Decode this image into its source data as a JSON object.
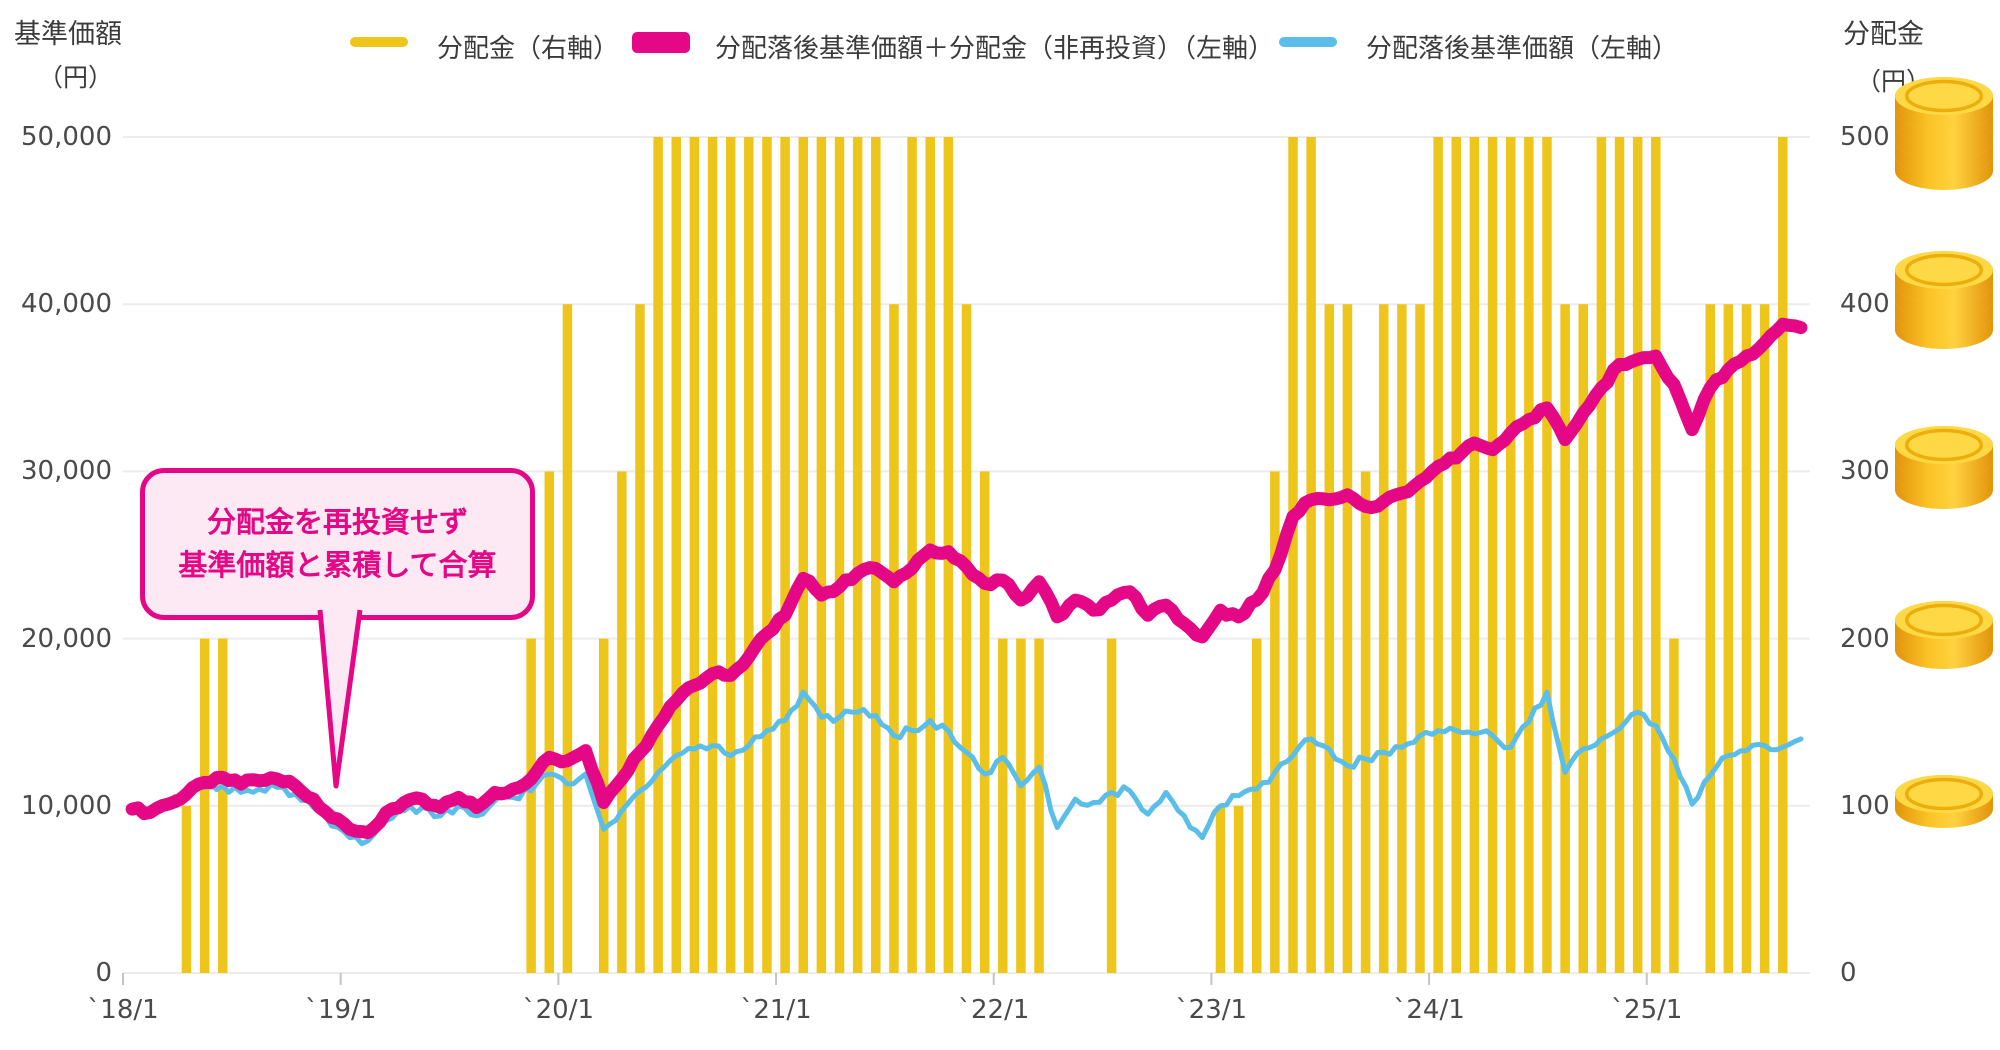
{
  "left_axis": {
    "title": "基準価額",
    "unit": "（円）",
    "ticks": [
      "0",
      "10,000",
      "20,000",
      "30,000",
      "40,000",
      "50,000"
    ]
  },
  "right_axis": {
    "title": "分配金",
    "unit": "（円）",
    "ticks": [
      "0",
      "100",
      "200",
      "300",
      "400",
      "500"
    ]
  },
  "legend": [
    {
      "label": "分配金（右軸）",
      "type": "bar",
      "color": "#EEC51B"
    },
    {
      "label": "分配落後基準価額＋分配金（非再投資）（左軸）",
      "type": "line-thick",
      "color": "#E40887"
    },
    {
      "label": "分配落後基準価額（左軸）",
      "type": "line",
      "color": "#5ABEE8"
    }
  ],
  "callout": {
    "line1": "分配金を再投資せず",
    "line2": "基準価額と累積して合算"
  },
  "colors": {
    "bar": "#EEC51B",
    "total_line": "#E40887",
    "nav_line": "#5ABEE8",
    "grid": "#ececec",
    "tick": "#c4c4c4",
    "text": "#3b3b3b",
    "callout_bg": "#FCE9F4",
    "callout_accent": "#E40887",
    "coin_side_dark": "#E1940B",
    "coin_side_mid": "#FBC426",
    "coin_side_light": "#FFD23F",
    "coin_top": "#FFD945",
    "coin_ring": "#EBAE0D"
  },
  "chart_data": {
    "type": "bar",
    "subtype": "combo-bar-and-lines",
    "months_start": "2018/1",
    "months_end": "2025/9",
    "x_labels": [
      "`18/1",
      "`19/1",
      "`20/1",
      "`21/1",
      "`22/1",
      "`23/1",
      "`24/1",
      "`25/1"
    ],
    "left_ylim": [
      0,
      50000
    ],
    "right_ylim": [
      0,
      500
    ],
    "grid": "horizontal-only",
    "legend_position": "top",
    "series": [
      {
        "name": "分配金（右軸）",
        "type": "bar",
        "axis": "right",
        "color": "#EEC51B",
        "values": [
          0,
          0,
          0,
          100,
          200,
          200,
          0,
          0,
          0,
          0,
          0,
          0,
          0,
          0,
          0,
          0,
          0,
          0,
          0,
          0,
          0,
          0,
          200,
          300,
          400,
          0,
          200,
          300,
          400,
          500,
          500,
          500,
          500,
          500,
          500,
          500,
          500,
          500,
          500,
          500,
          500,
          500,
          400,
          500,
          500,
          500,
          400,
          300,
          200,
          200,
          200,
          0,
          0,
          0,
          200,
          0,
          0,
          0,
          0,
          0,
          100,
          100,
          200,
          300,
          500,
          500,
          400,
          400,
          300,
          400,
          400,
          400,
          500,
          500,
          500,
          500,
          500,
          500,
          500,
          400,
          400,
          500,
          500,
          500,
          500,
          200,
          0,
          400,
          400,
          400,
          400,
          500,
          0
        ]
      },
      {
        "name": "分配落後基準価額＋分配金（非再投資）（左軸）",
        "type": "line",
        "axis": "left",
        "color": "#E40887",
        "stroke_width": 13,
        "values": [
          9800,
          9600,
          10100,
          10700,
          11400,
          11700,
          11300,
          11500,
          11600,
          11200,
          10400,
          9300,
          8600,
          8400,
          9600,
          10200,
          10400,
          9900,
          10500,
          9900,
          10800,
          11000,
          11600,
          12900,
          12700,
          13300,
          10200,
          11600,
          13200,
          14800,
          16300,
          17200,
          17900,
          17800,
          18900,
          20300,
          21400,
          23600,
          22600,
          23100,
          23900,
          24200,
          23400,
          24200,
          25300,
          25200,
          24300,
          23300,
          23500,
          22300,
          23400,
          21300,
          22300,
          21700,
          22300,
          22800,
          21400,
          22000,
          20900,
          20100,
          21700,
          21300,
          22300,
          24100,
          27300,
          28300,
          28300,
          28600,
          27900,
          28200,
          28700,
          29400,
          30300,
          30800,
          31700,
          31300,
          32300,
          33100,
          33800,
          31900,
          33500,
          35000,
          36400,
          36700,
          36900,
          35200,
          32500,
          35000,
          36100,
          36900,
          37700,
          38800,
          38600
        ]
      },
      {
        "name": "分配落後基準価額（左軸）",
        "type": "line",
        "axis": "left",
        "color": "#5ABEE8",
        "stroke_width": 5,
        "values": [
          9800,
          9600,
          10100,
          10600,
          11100,
          11200,
          10800,
          11000,
          11100,
          10700,
          9900,
          8800,
          8100,
          7900,
          9100,
          9700,
          9900,
          9400,
          10000,
          9400,
          10300,
          10500,
          10900,
          11900,
          11300,
          11900,
          8600,
          9700,
          10900,
          12000,
          13000,
          13400,
          13600,
          13000,
          13600,
          14500,
          15100,
          16800,
          15300,
          15300,
          15600,
          15400,
          14200,
          14500,
          15100,
          14500,
          13200,
          11900,
          12900,
          11200,
          12300,
          8700,
          10400,
          10200,
          10800,
          10900,
          9500,
          10800,
          9400,
          8100,
          10000,
          10600,
          11000,
          12000,
          13000,
          14000,
          13400,
          12400,
          12800,
          13200,
          13500,
          14200,
          14500,
          14500,
          14300,
          14200,
          13500,
          15000,
          16800,
          12000,
          13400,
          14000,
          14600,
          15600,
          14800,
          12800,
          10100,
          11800,
          13000,
          13300,
          13600,
          13500,
          14000
        ]
      }
    ],
    "coins": [
      {
        "label": "500",
        "count": 5
      },
      {
        "label": "400",
        "count": 4
      },
      {
        "label": "300",
        "count": 3
      },
      {
        "label": "200",
        "count": 2
      },
      {
        "label": "100",
        "count": 1
      }
    ]
  }
}
